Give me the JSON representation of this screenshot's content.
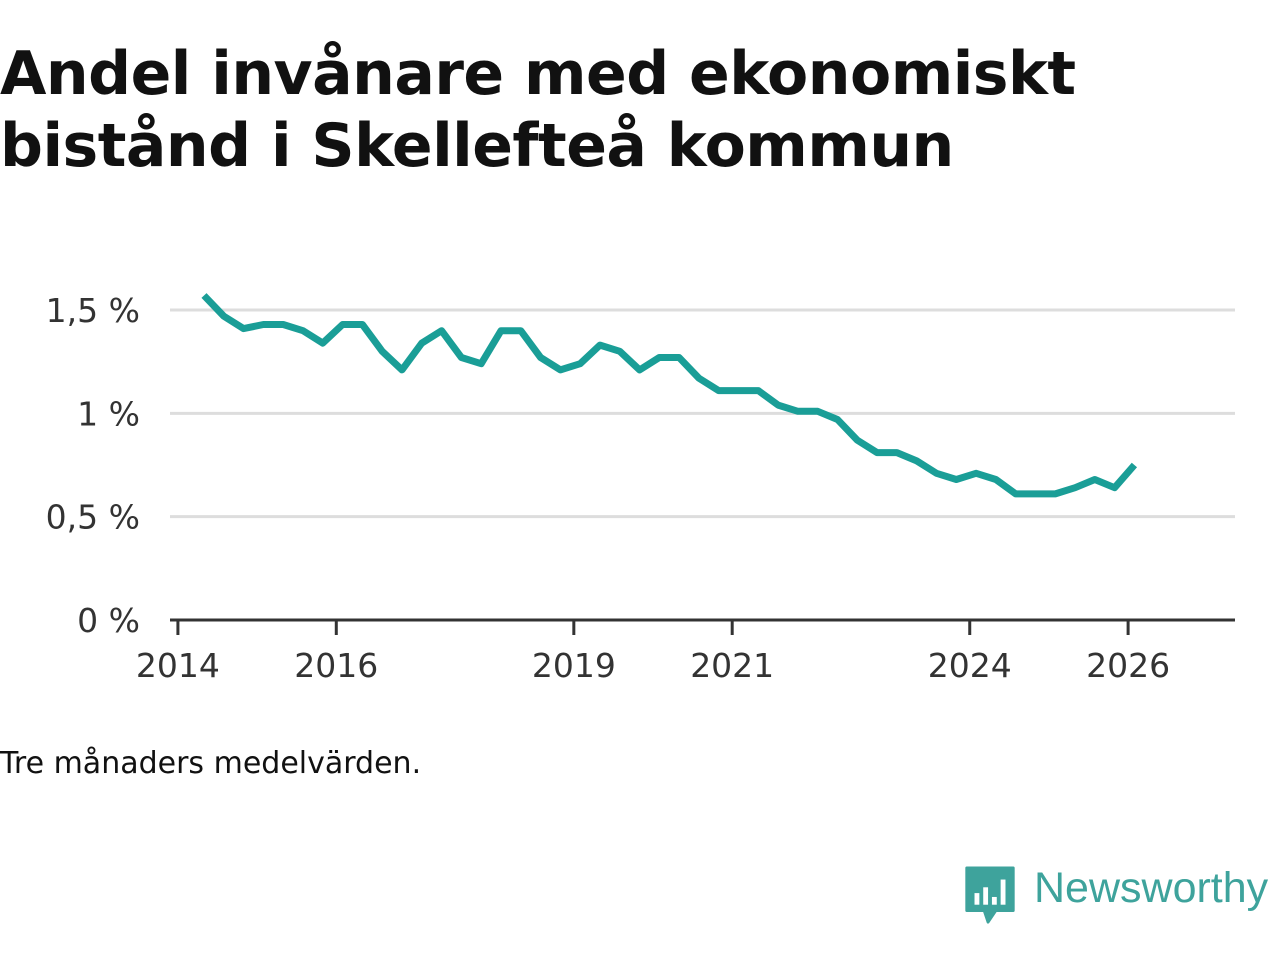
{
  "title": "Andel invånare med ekonomiskt bistånd i Skellefteå kommun",
  "note": "Tre månaders medelvärden.",
  "brand": {
    "name": "Newsworthy",
    "icon": "newsworthy-logo-icon",
    "color": "#3ea39c"
  },
  "chart_data": {
    "type": "line",
    "title": "Andel invånare med ekonomiskt bistånd i Skellefteå kommun",
    "xlabel": "",
    "ylabel": "",
    "grid": true,
    "legend": "none",
    "line_color": "#1a9e97",
    "xlim": [
      2013.9,
      2027.35
    ],
    "ylim": [
      0,
      1.6
    ],
    "x_ticks": [
      2014,
      2016,
      2019,
      2021,
      2024,
      2026
    ],
    "x_tick_labels": [
      "2014",
      "2016",
      "2019",
      "2021",
      "2024",
      "2026"
    ],
    "y_ticks": [
      0,
      0.5,
      1.0,
      1.5
    ],
    "y_tick_labels": [
      "0 %",
      "0,5 %",
      "1 %",
      "1,5 %"
    ],
    "series": [
      {
        "name": "Andel invånare med ekonomiskt bistånd",
        "x": [
          2014.33,
          2014.58,
          2014.83,
          2015.08,
          2015.33,
          2015.58,
          2015.83,
          2016.08,
          2016.33,
          2016.58,
          2016.83,
          2017.08,
          2017.33,
          2017.58,
          2017.83,
          2018.08,
          2018.33,
          2018.58,
          2018.83,
          2019.08,
          2019.33,
          2019.58,
          2019.83,
          2020.08,
          2020.33,
          2020.58,
          2020.83,
          2021.08,
          2021.33,
          2021.58,
          2021.83,
          2022.08,
          2022.33,
          2022.58,
          2022.83,
          2023.08,
          2023.33,
          2023.58,
          2023.83,
          2024.08,
          2024.33,
          2024.58,
          2024.83,
          2025.08,
          2025.33,
          2025.58,
          2025.83,
          2026.08
        ],
        "values": [
          1.57,
          1.47,
          1.41,
          1.43,
          1.43,
          1.4,
          1.34,
          1.43,
          1.43,
          1.3,
          1.21,
          1.34,
          1.4,
          1.27,
          1.24,
          1.4,
          1.4,
          1.27,
          1.21,
          1.24,
          1.33,
          1.3,
          1.21,
          1.27,
          1.27,
          1.17,
          1.11,
          1.11,
          1.11,
          1.04,
          1.01,
          1.01,
          0.97,
          0.87,
          0.81,
          0.81,
          0.77,
          0.71,
          0.68,
          0.71,
          0.68,
          0.61,
          0.61,
          0.61,
          0.64,
          0.68,
          0.64,
          0.75
        ]
      }
    ]
  }
}
